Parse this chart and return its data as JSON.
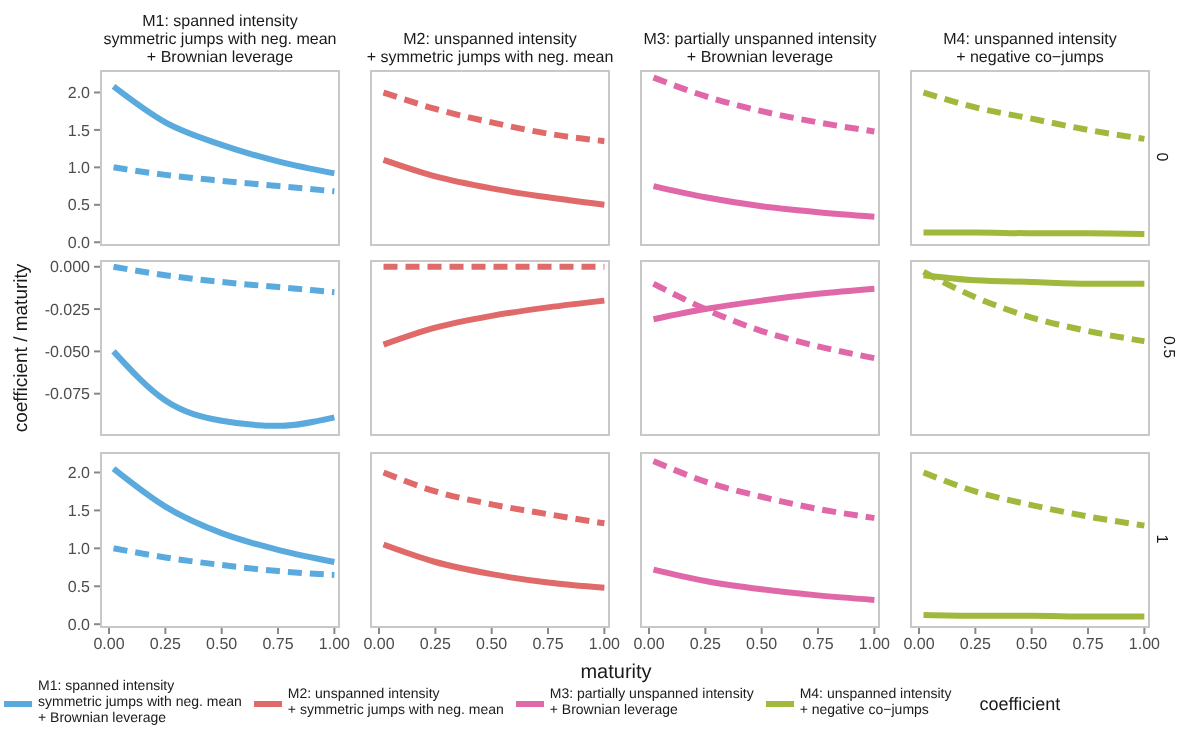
{
  "chart_data": [
    {
      "type": "line",
      "title": "M1: spanned intensity\nsymmetric jumps with neg. mean\n+ Brownian leverage",
      "x": [
        0.02,
        0.25,
        0.5,
        0.75,
        1.0
      ],
      "xlim": [
        -0.04,
        1.025
      ],
      "ylim": [
        -0.05,
        2.3
      ],
      "yticks": [
        {
          "value": 0,
          "label": "0.0"
        },
        {
          "value": 0.5,
          "label": "0.5"
        },
        {
          "value": 1,
          "label": "1.0"
        },
        {
          "value": 1.5,
          "label": "1.5"
        },
        {
          "value": 2,
          "label": "2.0"
        }
      ],
      "tick_labels": "y",
      "marker": "none",
      "legend": "bottom",
      "series": [
        {
          "name": "M1: spanned intensity\nsymmetric jumps with neg. mean\n+ Brownian leverage",
          "color": "#5aaade",
          "values": [
            2.08,
            1.6,
            1.3,
            1.08,
            0.92
          ],
          "line_style": "solid"
        },
        {
          "color": "#5aaade",
          "values": [
            1.0,
            0.9,
            0.82,
            0.75,
            0.68
          ],
          "line_style": "dashed"
        }
      ]
    },
    {
      "type": "line",
      "title": "M2: unspanned intensity\n+ symmetric jumps with neg. mean",
      "x": [
        0.02,
        0.25,
        0.5,
        0.75,
        1.0
      ],
      "xlim": [
        -0.04,
        1.025
      ],
      "ylim": [
        -0.05,
        2.3
      ],
      "tick_labels": false,
      "marker": "none",
      "legend": "bottom",
      "series": [
        {
          "name": "M2: unspanned intensity\n+ symmetric jumps with neg. mean",
          "color": "#e06a6a",
          "values": [
            1.1,
            0.88,
            0.72,
            0.6,
            0.5
          ],
          "line_style": "solid"
        },
        {
          "color": "#e06a6a",
          "values": [
            2.0,
            1.78,
            1.6,
            1.45,
            1.35
          ],
          "line_style": "dashed"
        }
      ]
    },
    {
      "type": "line",
      "title": "M3: partially unspanned intensity\n+ Brownian leverage",
      "x": [
        0.02,
        0.25,
        0.5,
        0.75,
        1.0
      ],
      "xlim": [
        -0.04,
        1.025
      ],
      "ylim": [
        -0.05,
        2.3
      ],
      "tick_labels": false,
      "marker": "none",
      "legend": "bottom",
      "series": [
        {
          "name": "M3: partially unspanned intensity\n+ Brownian leverage",
          "color": "#e068a8",
          "values": [
            0.75,
            0.6,
            0.48,
            0.4,
            0.34
          ],
          "line_style": "solid"
        },
        {
          "color": "#e068a8",
          "values": [
            2.2,
            1.95,
            1.75,
            1.6,
            1.48
          ],
          "line_style": "dashed"
        }
      ]
    },
    {
      "type": "line",
      "title": "M4: unspanned intensity\n+ negative co−jumps",
      "x": [
        0.02,
        0.25,
        0.5,
        0.75,
        1.0
      ],
      "xlim": [
        -0.04,
        1.025
      ],
      "ylim": [
        -0.05,
        2.3
      ],
      "tick_labels": false,
      "marker": "none",
      "legend": "bottom",
      "legend_title": "coefficient",
      "annotations": [
        "0"
      ],
      "series": [
        {
          "name": "M4: unspanned intensity\n+ negative co−jumps",
          "color": "#a0b83c",
          "values": [
            0.13,
            0.13,
            0.12,
            0.12,
            0.11
          ],
          "line_style": "solid"
        },
        {
          "color": "#a0b83c",
          "values": [
            2.0,
            1.8,
            1.65,
            1.5,
            1.38
          ],
          "line_style": "dashed"
        }
      ]
    },
    {
      "type": "line",
      "ylabel": "coefficient / maturity",
      "x": [
        0.02,
        0.25,
        0.5,
        0.75,
        1.0
      ],
      "xlim": [
        -0.04,
        1.025
      ],
      "ylim": [
        -0.1,
        0.004
      ],
      "yticks": [
        {
          "value": 0,
          "label": "0.000"
        },
        {
          "value": -0.025,
          "label": "-0.025"
        },
        {
          "value": -0.05,
          "label": "-0.050"
        },
        {
          "value": -0.075,
          "label": "-0.075"
        }
      ],
      "tick_labels": "y",
      "marker": "none",
      "series": [
        {
          "color": "#5aaade",
          "values": [
            -0.05,
            -0.079,
            -0.091,
            -0.094,
            -0.089
          ],
          "line_style": "solid"
        },
        {
          "color": "#5aaade",
          "values": [
            0.0,
            -0.005,
            -0.009,
            -0.012,
            -0.015
          ],
          "line_style": "dashed"
        }
      ]
    },
    {
      "type": "line",
      "x": [
        0.02,
        0.25,
        0.5,
        0.75,
        1.0
      ],
      "xlim": [
        -0.04,
        1.025
      ],
      "ylim": [
        -0.1,
        0.004
      ],
      "tick_labels": false,
      "marker": "none",
      "series": [
        {
          "color": "#e06a6a",
          "values": [
            -0.046,
            -0.036,
            -0.029,
            -0.024,
            -0.02
          ],
          "line_style": "solid"
        },
        {
          "color": "#e06a6a",
          "values": [
            0.0,
            0.0,
            0.0,
            0.0,
            0.0
          ],
          "line_style": "dashed"
        }
      ]
    },
    {
      "type": "line",
      "x": [
        0.02,
        0.25,
        0.5,
        0.75,
        1.0
      ],
      "xlim": [
        -0.04,
        1.025
      ],
      "ylim": [
        -0.1,
        0.004
      ],
      "tick_labels": false,
      "marker": "none",
      "series": [
        {
          "color": "#e068a8",
          "values": [
            -0.031,
            -0.025,
            -0.02,
            -0.016,
            -0.013
          ],
          "line_style": "solid"
        },
        {
          "color": "#e068a8",
          "values": [
            -0.01,
            -0.025,
            -0.038,
            -0.047,
            -0.054
          ],
          "line_style": "dashed"
        }
      ]
    },
    {
      "type": "line",
      "x": [
        0.02,
        0.25,
        0.5,
        0.75,
        1.0
      ],
      "xlim": [
        -0.04,
        1.025
      ],
      "ylim": [
        -0.1,
        0.004
      ],
      "tick_labels": false,
      "marker": "none",
      "annotations": [
        "0.5"
      ],
      "series": [
        {
          "color": "#a0b83c",
          "values": [
            -0.005,
            -0.008,
            -0.009,
            -0.01,
            -0.01
          ],
          "line_style": "solid"
        },
        {
          "color": "#a0b83c",
          "values": [
            -0.003,
            -0.018,
            -0.03,
            -0.038,
            -0.044
          ],
          "line_style": "dashed"
        }
      ]
    },
    {
      "type": "line",
      "x": [
        0.02,
        0.25,
        0.5,
        0.75,
        1.0
      ],
      "xlim": [
        -0.04,
        1.025
      ],
      "xticks": [
        {
          "value": 0,
          "label": "0.00"
        },
        {
          "value": 0.25,
          "label": "0.25"
        },
        {
          "value": 0.5,
          "label": "0.50"
        },
        {
          "value": 0.75,
          "label": "0.75"
        },
        {
          "value": 1,
          "label": "1.00"
        }
      ],
      "ylim": [
        -0.05,
        2.27
      ],
      "yticks": [
        {
          "value": 0,
          "label": "0.0"
        },
        {
          "value": 0.5,
          "label": "0.5"
        },
        {
          "value": 1,
          "label": "1.0"
        },
        {
          "value": 1.5,
          "label": "1.5"
        },
        {
          "value": 2,
          "label": "2.0"
        }
      ],
      "marker": "none",
      "series": [
        {
          "color": "#5aaade",
          "values": [
            2.05,
            1.55,
            1.2,
            0.98,
            0.82
          ],
          "line_style": "solid"
        },
        {
          "color": "#5aaade",
          "values": [
            1.0,
            0.88,
            0.78,
            0.7,
            0.65
          ],
          "line_style": "dashed"
        }
      ]
    },
    {
      "type": "line",
      "xlabel": "maturity",
      "x": [
        0.02,
        0.25,
        0.5,
        0.75,
        1.0
      ],
      "xlim": [
        -0.04,
        1.025
      ],
      "xticks": [
        {
          "value": 0,
          "label": "0.00"
        },
        {
          "value": 0.25,
          "label": "0.25"
        },
        {
          "value": 0.5,
          "label": "0.50"
        },
        {
          "value": 0.75,
          "label": "0.75"
        },
        {
          "value": 1,
          "label": "1.00"
        }
      ],
      "ylim": [
        -0.05,
        2.27
      ],
      "tick_labels": "x",
      "marker": "none",
      "series": [
        {
          "color": "#e06a6a",
          "values": [
            1.05,
            0.82,
            0.66,
            0.55,
            0.48
          ],
          "line_style": "solid"
        },
        {
          "color": "#e06a6a",
          "values": [
            2.0,
            1.75,
            1.58,
            1.45,
            1.33
          ],
          "line_style": "dashed"
        }
      ]
    },
    {
      "type": "line",
      "x": [
        0.02,
        0.25,
        0.5,
        0.75,
        1.0
      ],
      "xlim": [
        -0.04,
        1.025
      ],
      "xticks": [
        {
          "value": 0,
          "label": "0.00"
        },
        {
          "value": 0.25,
          "label": "0.25"
        },
        {
          "value": 0.5,
          "label": "0.50"
        },
        {
          "value": 0.75,
          "label": "0.75"
        },
        {
          "value": 1,
          "label": "1.00"
        }
      ],
      "ylim": [
        -0.05,
        2.27
      ],
      "tick_labels": "x",
      "marker": "none",
      "series": [
        {
          "color": "#e068a8",
          "values": [
            0.72,
            0.57,
            0.46,
            0.38,
            0.32
          ],
          "line_style": "solid"
        },
        {
          "color": "#e068a8",
          "values": [
            2.15,
            1.88,
            1.68,
            1.52,
            1.4
          ],
          "line_style": "dashed"
        }
      ]
    },
    {
      "type": "line",
      "x": [
        0.02,
        0.25,
        0.5,
        0.75,
        1.0
      ],
      "xlim": [
        -0.04,
        1.025
      ],
      "xticks": [
        {
          "value": 0,
          "label": "0.00"
        },
        {
          "value": 0.25,
          "label": "0.25"
        },
        {
          "value": 0.5,
          "label": "0.50"
        },
        {
          "value": 0.75,
          "label": "0.75"
        },
        {
          "value": 1,
          "label": "1.00"
        }
      ],
      "ylim": [
        -0.05,
        2.27
      ],
      "tick_labels": "x",
      "marker": "none",
      "annotations": [
        "1"
      ],
      "series": [
        {
          "color": "#a0b83c",
          "values": [
            0.12,
            0.11,
            0.11,
            0.1,
            0.1
          ],
          "line_style": "solid"
        },
        {
          "color": "#a0b83c",
          "values": [
            2.0,
            1.75,
            1.57,
            1.42,
            1.3
          ],
          "line_style": "dashed"
        }
      ]
    }
  ]
}
